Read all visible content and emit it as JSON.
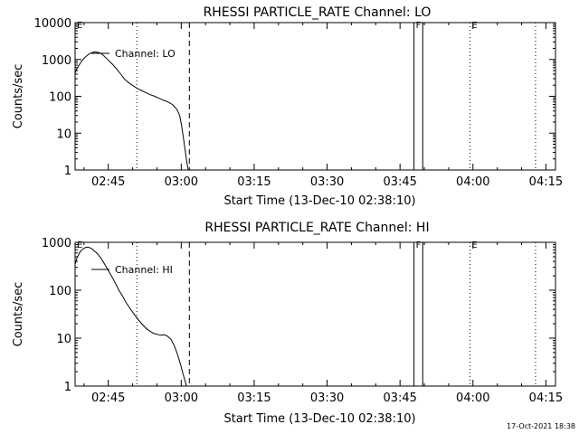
{
  "footer": {
    "timestamp": "17-Oct-2021 18:38"
  },
  "chart_data": [
    {
      "type": "line",
      "title": "RHESSI PARTICLE_RATE Channel: LO",
      "xlabel": "Start Time (13-Dec-10 02:38:10)",
      "ylabel": "Counts/sec",
      "x_unit": "minutes after 02:38:10",
      "x_ticks": [
        {
          "x": 6.83,
          "label": "02:45"
        },
        {
          "x": 21.83,
          "label": "03:00"
        },
        {
          "x": 36.83,
          "label": "03:15"
        },
        {
          "x": 51.83,
          "label": "03:30"
        },
        {
          "x": 66.83,
          "label": "03:45"
        },
        {
          "x": 81.83,
          "label": "04:00"
        },
        {
          "x": 96.83,
          "label": "04:15"
        }
      ],
      "y_ticks": [
        {
          "y": 1,
          "label": "1"
        },
        {
          "y": 10,
          "label": "10"
        },
        {
          "y": 100,
          "label": "100"
        },
        {
          "y": 1000,
          "label": "1000"
        },
        {
          "y": 10000,
          "label": "10000"
        }
      ],
      "xlim": [
        0,
        98.8
      ],
      "ylim": [
        1,
        10000
      ],
      "yscale": "log",
      "legend": {
        "label": "Channel: LO",
        "placement": "top-left"
      },
      "markers": [
        {
          "x": 0.0,
          "label": "E"
        },
        {
          "x": 69.7,
          "label": "F"
        },
        {
          "x": 81.2,
          "label": "E"
        }
      ],
      "vlines": [
        {
          "x": 12.7,
          "style": "dotted"
        },
        {
          "x": 23.5,
          "style": "dashed"
        },
        {
          "x": 81.2,
          "style": "dotted"
        },
        {
          "x": 94.7,
          "style": "dotted"
        }
      ],
      "box": {
        "x0": 69.7,
        "x1": 71.5
      },
      "series": [
        {
          "x": [
            0.0,
            0.3,
            0.8,
            1.3,
            1.8,
            2.3,
            2.8,
            3.2,
            3.7,
            4.1,
            4.5,
            5.0,
            5.5,
            6.0,
            6.7,
            7.6,
            8.5,
            9.4,
            10.2,
            11.1,
            12.0,
            12.9,
            13.8,
            14.6,
            15.5,
            16.4,
            17.3,
            18.2,
            19.1,
            20.0,
            20.9,
            21.5,
            21.9,
            22.3,
            22.7,
            23.0,
            23.3
          ],
          "y": [
            420,
            540,
            700,
            880,
            1060,
            1230,
            1380,
            1480,
            1560,
            1600,
            1580,
            1520,
            1410,
            1220,
            1000,
            760,
            560,
            400,
            290,
            230,
            190,
            160,
            140,
            125,
            110,
            100,
            88,
            78,
            70,
            60,
            45,
            30,
            16,
            7,
            3,
            1.6,
            1.0
          ]
        }
      ]
    },
    {
      "type": "line",
      "title": "RHESSI PARTICLE_RATE Channel: HI",
      "xlabel": "Start Time (13-Dec-10 02:38:10)",
      "ylabel": "Counts/sec",
      "x_unit": "minutes after 02:38:10",
      "x_ticks": [
        {
          "x": 6.83,
          "label": "02:45"
        },
        {
          "x": 21.83,
          "label": "03:00"
        },
        {
          "x": 36.83,
          "label": "03:15"
        },
        {
          "x": 51.83,
          "label": "03:30"
        },
        {
          "x": 66.83,
          "label": "03:45"
        },
        {
          "x": 81.83,
          "label": "04:00"
        },
        {
          "x": 96.83,
          "label": "04:15"
        }
      ],
      "y_ticks": [
        {
          "y": 1,
          "label": "1"
        },
        {
          "y": 10,
          "label": "10"
        },
        {
          "y": 100,
          "label": "100"
        },
        {
          "y": 1000,
          "label": "1000"
        }
      ],
      "xlim": [
        0,
        98.8
      ],
      "ylim": [
        1,
        1000
      ],
      "yscale": "log",
      "legend": {
        "label": "Channel: HI",
        "placement": "top-left"
      },
      "markers": [
        {
          "x": 0.0,
          "label": "E"
        },
        {
          "x": 69.7,
          "label": "F"
        },
        {
          "x": 81.2,
          "label": "E"
        }
      ],
      "vlines": [
        {
          "x": 12.7,
          "style": "dotted"
        },
        {
          "x": 23.5,
          "style": "dashed"
        },
        {
          "x": 81.2,
          "style": "dotted"
        },
        {
          "x": 94.7,
          "style": "dotted"
        }
      ],
      "box": {
        "x0": 69.7,
        "x1": 71.5
      },
      "series": [
        {
          "x": [
            0.0,
            0.4,
            0.9,
            1.4,
            1.9,
            2.4,
            2.9,
            3.4,
            3.8,
            4.3,
            4.8,
            5.3,
            5.8,
            6.3,
            6.9,
            7.6,
            8.3,
            9.0,
            9.8,
            10.5,
            11.3,
            12.1,
            12.9,
            13.7,
            14.6,
            15.4,
            16.2,
            16.9,
            17.6,
            18.3,
            19.0,
            19.7,
            20.4,
            21.1,
            21.7,
            22.2,
            22.6,
            22.9
          ],
          "y": [
            350,
            470,
            600,
            700,
            760,
            790,
            780,
            740,
            680,
            620,
            550,
            470,
            390,
            320,
            250,
            190,
            140,
            100,
            74,
            55,
            42,
            32,
            25,
            20,
            16,
            14,
            12.5,
            12,
            11.5,
            11.8,
            11,
            9.5,
            7,
            4.5,
            2.8,
            1.8,
            1.3,
            1.0
          ]
        }
      ]
    }
  ]
}
